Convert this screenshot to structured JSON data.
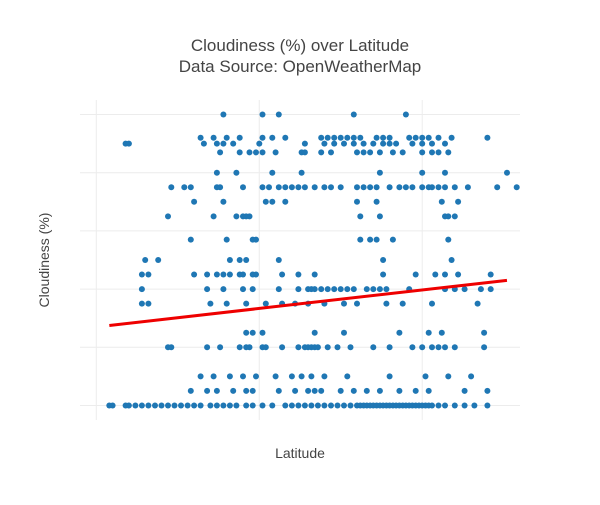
{
  "chart_data": {
    "type": "scatter",
    "title_lines": [
      "Cloudiness (%) over Latitude",
      "Data Source: OpenWeatherMap"
    ],
    "xlabel": "Latitude",
    "ylabel": "Cloudiness (%)",
    "xlim": [
      -55,
      80
    ],
    "ylim": [
      -5,
      105
    ],
    "x_gridlines": [
      -50,
      0,
      50
    ],
    "y_gridlines": [
      0,
      20,
      40,
      60,
      80,
      100
    ],
    "grid": true,
    "legend": "none",
    "point_color": "#1f77b4",
    "fit_color": "#ee0000",
    "regression": {
      "x": [
        -46,
        76
      ],
      "y": [
        27.5,
        43
      ]
    },
    "points": [
      [
        -46,
        0
      ],
      [
        -45,
        0
      ],
      [
        -41,
        0
      ],
      [
        -40,
        0
      ],
      [
        -38,
        0
      ],
      [
        -36,
        0
      ],
      [
        -34,
        0
      ],
      [
        -32,
        0
      ],
      [
        -30,
        0
      ],
      [
        -28,
        0
      ],
      [
        -26,
        0
      ],
      [
        -24,
        0
      ],
      [
        -22,
        0
      ],
      [
        -20,
        0
      ],
      [
        -18,
        0
      ],
      [
        -15,
        0
      ],
      [
        -13,
        0
      ],
      [
        -11,
        0
      ],
      [
        -9,
        0
      ],
      [
        -7,
        0
      ],
      [
        -4,
        0
      ],
      [
        -2,
        0
      ],
      [
        1,
        0
      ],
      [
        4,
        0
      ],
      [
        8,
        0
      ],
      [
        10,
        0
      ],
      [
        12,
        0
      ],
      [
        14,
        0
      ],
      [
        16,
        0
      ],
      [
        18,
        0
      ],
      [
        20,
        0
      ],
      [
        22,
        0
      ],
      [
        24,
        0
      ],
      [
        26,
        0
      ],
      [
        28,
        0
      ],
      [
        30,
        0
      ],
      [
        31,
        0
      ],
      [
        32,
        0
      ],
      [
        33,
        0
      ],
      [
        34,
        0
      ],
      [
        35,
        0
      ],
      [
        36,
        0
      ],
      [
        37,
        0
      ],
      [
        38,
        0
      ],
      [
        39,
        0
      ],
      [
        40,
        0
      ],
      [
        41,
        0
      ],
      [
        42,
        0
      ],
      [
        43,
        0
      ],
      [
        44,
        0
      ],
      [
        45,
        0
      ],
      [
        46,
        0
      ],
      [
        47,
        0
      ],
      [
        48,
        0
      ],
      [
        49,
        0
      ],
      [
        50,
        0
      ],
      [
        51,
        0
      ],
      [
        52,
        0
      ],
      [
        53,
        0
      ],
      [
        55,
        0
      ],
      [
        57,
        0
      ],
      [
        60,
        0
      ],
      [
        63,
        0
      ],
      [
        66,
        0
      ],
      [
        70,
        0
      ],
      [
        -21,
        5
      ],
      [
        -16,
        5
      ],
      [
        -13,
        5
      ],
      [
        -8,
        5
      ],
      [
        -4,
        5
      ],
      [
        -2,
        5
      ],
      [
        6,
        5
      ],
      [
        11,
        5
      ],
      [
        15,
        5
      ],
      [
        17,
        5
      ],
      [
        19,
        5
      ],
      [
        25,
        5
      ],
      [
        29,
        5
      ],
      [
        33,
        5
      ],
      [
        37,
        5
      ],
      [
        43,
        5
      ],
      [
        48,
        5
      ],
      [
        52,
        5
      ],
      [
        63,
        5
      ],
      [
        70,
        5
      ],
      [
        -18,
        10
      ],
      [
        -14,
        10
      ],
      [
        -9,
        10
      ],
      [
        -5,
        10
      ],
      [
        -1,
        10
      ],
      [
        5,
        10
      ],
      [
        10,
        10
      ],
      [
        13,
        10
      ],
      [
        16,
        10
      ],
      [
        20,
        10
      ],
      [
        27,
        10
      ],
      [
        40,
        10
      ],
      [
        51,
        10
      ],
      [
        58,
        10
      ],
      [
        65,
        10
      ],
      [
        -28,
        20
      ],
      [
        -27,
        20
      ],
      [
        -16,
        20
      ],
      [
        -12,
        20
      ],
      [
        -6,
        20
      ],
      [
        -4,
        20
      ],
      [
        -3,
        20
      ],
      [
        1,
        20
      ],
      [
        2,
        20
      ],
      [
        7,
        20
      ],
      [
        12,
        20
      ],
      [
        14,
        20
      ],
      [
        15,
        20
      ],
      [
        16,
        20
      ],
      [
        17,
        20
      ],
      [
        18,
        20
      ],
      [
        21,
        20
      ],
      [
        24,
        20
      ],
      [
        28,
        20
      ],
      [
        35,
        20
      ],
      [
        40,
        20
      ],
      [
        47,
        20
      ],
      [
        50,
        20
      ],
      [
        53,
        20
      ],
      [
        55,
        20
      ],
      [
        57,
        20
      ],
      [
        60,
        20
      ],
      [
        69,
        20
      ],
      [
        -4,
        25
      ],
      [
        -2,
        25
      ],
      [
        1,
        25
      ],
      [
        17,
        25
      ],
      [
        26,
        25
      ],
      [
        43,
        25
      ],
      [
        52,
        25
      ],
      [
        56,
        25
      ],
      [
        69,
        25
      ],
      [
        -36,
        35
      ],
      [
        -34,
        35
      ],
      [
        -15,
        35
      ],
      [
        -10,
        35
      ],
      [
        -4,
        35
      ],
      [
        2,
        35
      ],
      [
        7,
        35
      ],
      [
        11,
        35
      ],
      [
        15,
        35
      ],
      [
        20,
        35
      ],
      [
        26,
        35
      ],
      [
        30,
        35
      ],
      [
        39,
        35
      ],
      [
        44,
        35
      ],
      [
        53,
        35
      ],
      [
        67,
        35
      ],
      [
        -36,
        40
      ],
      [
        -16,
        40
      ],
      [
        -11,
        40
      ],
      [
        -5,
        40
      ],
      [
        -2,
        40
      ],
      [
        6,
        40
      ],
      [
        12,
        40
      ],
      [
        15,
        40
      ],
      [
        16,
        40
      ],
      [
        17,
        40
      ],
      [
        19,
        40
      ],
      [
        21,
        40
      ],
      [
        23,
        40
      ],
      [
        25,
        40
      ],
      [
        27,
        40
      ],
      [
        29,
        40
      ],
      [
        33,
        40
      ],
      [
        35,
        40
      ],
      [
        37,
        40
      ],
      [
        39,
        40
      ],
      [
        46,
        40
      ],
      [
        57,
        40
      ],
      [
        60,
        40
      ],
      [
        63,
        40
      ],
      [
        68,
        40
      ],
      [
        71,
        40
      ],
      [
        -36,
        45
      ],
      [
        -34,
        45
      ],
      [
        -20,
        45
      ],
      [
        -16,
        45
      ],
      [
        -13,
        45
      ],
      [
        -11,
        45
      ],
      [
        -9,
        45
      ],
      [
        -6,
        45
      ],
      [
        -5,
        45
      ],
      [
        -2,
        45
      ],
      [
        -1,
        45
      ],
      [
        7,
        45
      ],
      [
        12,
        45
      ],
      [
        17,
        45
      ],
      [
        38,
        45
      ],
      [
        48,
        45
      ],
      [
        54,
        45
      ],
      [
        57,
        45
      ],
      [
        61,
        45
      ],
      [
        71,
        45
      ],
      [
        -35,
        50
      ],
      [
        -31,
        50
      ],
      [
        -9,
        50
      ],
      [
        -6,
        50
      ],
      [
        -4,
        50
      ],
      [
        6,
        50
      ],
      [
        38,
        50
      ],
      [
        59,
        50
      ],
      [
        -21,
        57
      ],
      [
        -10,
        57
      ],
      [
        -2,
        57
      ],
      [
        -1,
        57
      ],
      [
        31,
        57
      ],
      [
        34,
        57
      ],
      [
        36,
        57
      ],
      [
        41,
        57
      ],
      [
        58,
        57
      ],
      [
        -28,
        65
      ],
      [
        -14,
        65
      ],
      [
        -7,
        65
      ],
      [
        -5,
        65
      ],
      [
        -4,
        65
      ],
      [
        -3,
        65
      ],
      [
        31,
        65
      ],
      [
        37,
        65
      ],
      [
        57,
        65
      ],
      [
        58,
        65
      ],
      [
        60,
        65
      ],
      [
        -20,
        70
      ],
      [
        -11,
        70
      ],
      [
        2,
        70
      ],
      [
        4,
        70
      ],
      [
        8,
        70
      ],
      [
        30,
        70
      ],
      [
        36,
        70
      ],
      [
        56,
        70
      ],
      [
        61,
        70
      ],
      [
        -27,
        75
      ],
      [
        -23,
        75
      ],
      [
        -21,
        75
      ],
      [
        -13,
        75
      ],
      [
        -12,
        75
      ],
      [
        -5,
        75
      ],
      [
        1,
        75
      ],
      [
        3,
        75
      ],
      [
        6,
        75
      ],
      [
        8,
        75
      ],
      [
        10,
        75
      ],
      [
        12,
        75
      ],
      [
        14,
        75
      ],
      [
        17,
        75
      ],
      [
        20,
        75
      ],
      [
        22,
        75
      ],
      [
        25,
        75
      ],
      [
        30,
        75
      ],
      [
        32,
        75
      ],
      [
        34,
        75
      ],
      [
        36,
        75
      ],
      [
        40,
        75
      ],
      [
        43,
        75
      ],
      [
        45,
        75
      ],
      [
        47,
        75
      ],
      [
        50,
        75
      ],
      [
        52,
        75
      ],
      [
        53,
        75
      ],
      [
        55,
        75
      ],
      [
        57,
        75
      ],
      [
        60,
        75
      ],
      [
        64,
        75
      ],
      [
        73,
        75
      ],
      [
        79,
        75
      ],
      [
        -13,
        80
      ],
      [
        -7,
        80
      ],
      [
        4,
        80
      ],
      [
        13,
        80
      ],
      [
        37,
        80
      ],
      [
        50,
        80
      ],
      [
        57,
        80
      ],
      [
        76,
        80
      ],
      [
        -12,
        87
      ],
      [
        -6,
        87
      ],
      [
        -3,
        87
      ],
      [
        -1,
        87
      ],
      [
        1,
        87
      ],
      [
        5,
        87
      ],
      [
        13,
        87
      ],
      [
        14,
        87
      ],
      [
        19,
        87
      ],
      [
        22,
        87
      ],
      [
        30,
        87
      ],
      [
        32,
        87
      ],
      [
        34,
        87
      ],
      [
        37,
        87
      ],
      [
        41,
        87
      ],
      [
        44,
        87
      ],
      [
        50,
        87
      ],
      [
        53,
        87
      ],
      [
        55,
        87
      ],
      [
        58,
        87
      ],
      [
        -41,
        90
      ],
      [
        -40,
        90
      ],
      [
        -17,
        90
      ],
      [
        -13,
        90
      ],
      [
        -11,
        90
      ],
      [
        -8,
        90
      ],
      [
        0,
        90
      ],
      [
        14,
        90
      ],
      [
        20,
        90
      ],
      [
        23,
        90
      ],
      [
        26,
        90
      ],
      [
        29,
        90
      ],
      [
        32,
        90
      ],
      [
        35,
        90
      ],
      [
        38,
        90
      ],
      [
        40,
        90
      ],
      [
        42,
        90
      ],
      [
        47,
        90
      ],
      [
        50,
        90
      ],
      [
        53,
        90
      ],
      [
        57,
        90
      ],
      [
        -18,
        92
      ],
      [
        -14,
        92
      ],
      [
        -10,
        92
      ],
      [
        -6,
        92
      ],
      [
        1,
        92
      ],
      [
        4,
        92
      ],
      [
        8,
        92
      ],
      [
        19,
        92
      ],
      [
        21,
        92
      ],
      [
        23,
        92
      ],
      [
        25,
        92
      ],
      [
        27,
        92
      ],
      [
        29,
        92
      ],
      [
        31,
        92
      ],
      [
        36,
        92
      ],
      [
        38,
        92
      ],
      [
        40,
        92
      ],
      [
        46,
        92
      ],
      [
        48,
        92
      ],
      [
        50,
        92
      ],
      [
        52,
        92
      ],
      [
        55,
        92
      ],
      [
        59,
        92
      ],
      [
        70,
        92
      ],
      [
        -11,
        100
      ],
      [
        1,
        100
      ],
      [
        6,
        100
      ],
      [
        29,
        100
      ],
      [
        45,
        100
      ]
    ]
  }
}
